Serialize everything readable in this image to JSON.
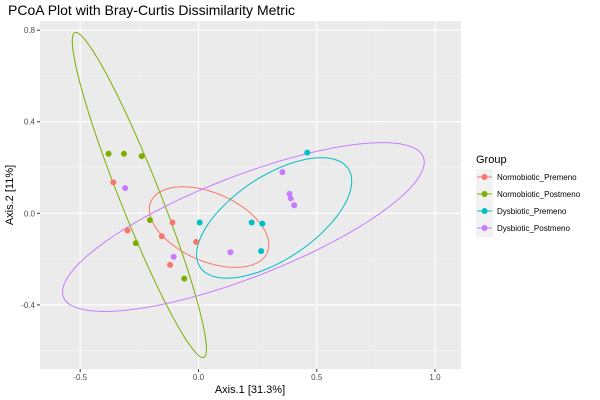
{
  "chart_data": {
    "type": "scatter",
    "title": "PCoA Plot with Bray-Curtis Dissimilarity Metric",
    "xlabel": "Axis.1   [31.3%]",
    "ylabel": "Axis.2   [11%]",
    "xlim": [
      -0.67,
      1.11
    ],
    "ylim": [
      -0.68,
      0.84
    ],
    "x_ticks": [
      -0.5,
      0.0,
      0.5,
      1.0
    ],
    "x_tick_labels": [
      "-0.5",
      "0.0",
      "0.5",
      "1.0"
    ],
    "y_ticks": [
      -0.4,
      0.0,
      0.4,
      0.8
    ],
    "y_tick_labels": [
      "-0.4",
      "0.0",
      "0.4",
      "0.8"
    ],
    "grid": true,
    "legend": {
      "title": "Group",
      "position": "right"
    },
    "series": [
      {
        "name": "Normobiotic_Premeno",
        "color": "#F8766D",
        "points": [
          {
            "x": -0.36,
            "y": 0.135
          },
          {
            "x": -0.3,
            "y": -0.075
          },
          {
            "x": -0.155,
            "y": -0.1
          },
          {
            "x": -0.11,
            "y": -0.04
          },
          {
            "x": -0.12,
            "y": -0.225
          },
          {
            "x": -0.01,
            "y": -0.125
          }
        ],
        "ellipse": {
          "cx": 0.045,
          "cy": -0.06,
          "rx": 0.27,
          "ry": 0.148,
          "angle_deg": -25
        }
      },
      {
        "name": "Normobiotic_Postmeno",
        "color": "#7CAE00",
        "points": [
          {
            "x": -0.38,
            "y": 0.26
          },
          {
            "x": -0.315,
            "y": 0.26
          },
          {
            "x": -0.24,
            "y": 0.25
          },
          {
            "x": -0.205,
            "y": -0.03
          },
          {
            "x": -0.265,
            "y": -0.13
          },
          {
            "x": -0.06,
            "y": -0.285
          }
        ],
        "ellipse": {
          "cx": -0.25,
          "cy": 0.08,
          "rx": 0.76,
          "ry": 0.085,
          "angle_deg": -69
        }
      },
      {
        "name": "Dysbiotic_Premeno",
        "color": "#00BFC4",
        "points": [
          {
            "x": 0.46,
            "y": 0.265
          },
          {
            "x": 0.225,
            "y": -0.04
          },
          {
            "x": 0.27,
            "y": -0.045
          },
          {
            "x": 0.265,
            "y": -0.165
          },
          {
            "x": 0.005,
            "y": -0.04
          }
        ],
        "ellipse": {
          "cx": 0.32,
          "cy": -0.02,
          "rx": 0.38,
          "ry": 0.18,
          "angle_deg": 35
        }
      },
      {
        "name": "Dysbiotic_Postmeno",
        "color": "#C77CFF",
        "points": [
          {
            "x": 0.355,
            "y": 0.18
          },
          {
            "x": 0.385,
            "y": 0.085
          },
          {
            "x": 0.39,
            "y": 0.065
          },
          {
            "x": 0.405,
            "y": 0.035
          },
          {
            "x": 0.135,
            "y": -0.17
          },
          {
            "x": -0.105,
            "y": -0.19
          },
          {
            "x": -0.31,
            "y": 0.11
          }
        ],
        "ellipse": {
          "cx": 0.19,
          "cy": -0.06,
          "rx": 0.82,
          "ry": 0.22,
          "angle_deg": 22
        }
      }
    ]
  }
}
